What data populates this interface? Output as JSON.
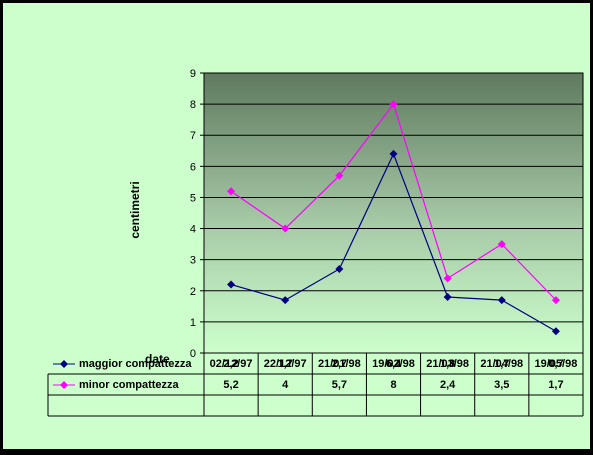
{
  "chart_data": {
    "type": "line",
    "categories": [
      "02/12/97",
      "22/12/97",
      "21/01/98",
      "19/02/98",
      "21/03/98",
      "21/04/98",
      "19/05/98"
    ],
    "series": [
      {
        "name": "maggior compattezza",
        "values": [
          2.2,
          1.7,
          2.7,
          6.4,
          1.8,
          1.7,
          0.7
        ],
        "labels": [
          "2,2",
          "1,7",
          "2,7",
          "6,4",
          "1,8",
          "1,7",
          "0,7"
        ],
        "color": "#000080"
      },
      {
        "name": "minor compattezza",
        "values": [
          5.2,
          4,
          5.7,
          8,
          2.4,
          3.5,
          1.7
        ],
        "labels": [
          "5,2",
          "4",
          "5,7",
          "8",
          "2,4",
          "3,5",
          "1,7"
        ],
        "color": "#ff00ff"
      }
    ],
    "xlabel": "date",
    "ylabel": "centimetri",
    "ylim": [
      0,
      9
    ],
    "yticks": [
      0,
      1,
      2,
      3,
      4,
      5,
      6,
      7,
      8,
      9
    ],
    "grid": true,
    "legend": "data table below chart",
    "plot_background": "gradient dark green to light green"
  }
}
